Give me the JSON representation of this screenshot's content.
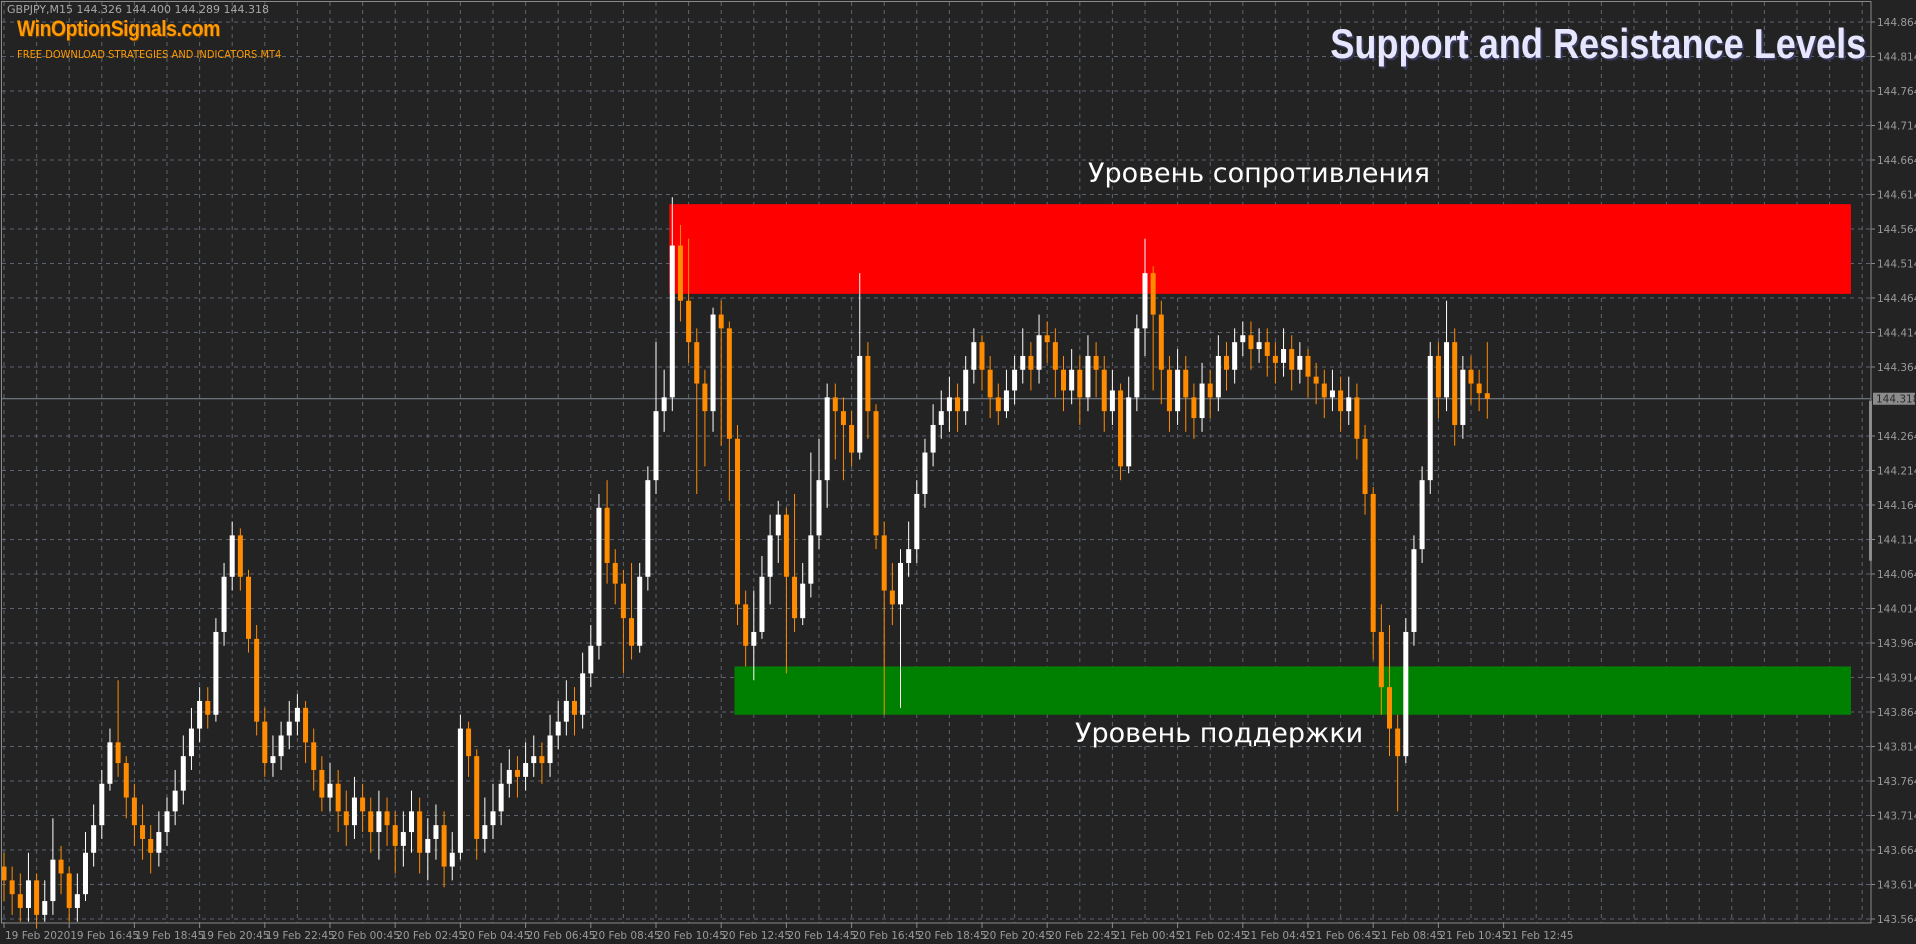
{
  "header": {
    "symbol_line": "GBPJPY,M15  144.326 144.400 144.289 144.318",
    "brand": "WinOptionSignals.com",
    "tagline": "FREE DOWNLOAD STRATEGIES AND INDICATORS MT4",
    "title": "Support and Resistance Levels"
  },
  "colors": {
    "background": "#232323",
    "grid": "#5c6470",
    "bull": "#ffffff",
    "bear": "#ff8c00",
    "resistance": "#ff0000",
    "support": "#008000",
    "axis_text": "#9a9a9a",
    "brand": "#ff9a00"
  },
  "chart_data": {
    "type": "candlestick",
    "symbol": "GBPJPY",
    "timeframe": "M15",
    "grid": true,
    "ylim": [
      143.564,
      144.864
    ],
    "y_ticks": [
      "144.864",
      "144.814",
      "144.764",
      "144.714",
      "144.664",
      "144.614",
      "144.564",
      "144.514",
      "144.464",
      "144.414",
      "144.364",
      "144.318",
      "144.264",
      "144.214",
      "144.164",
      "144.114",
      "144.064",
      "144.014",
      "143.964",
      "143.914",
      "143.864",
      "143.814",
      "143.764",
      "143.714",
      "143.664",
      "143.614",
      "143.564"
    ],
    "current_price": 144.318,
    "current_price_label": "144.318",
    "x_ticks": [
      "19 Feb 2020",
      "19 Feb 16:45",
      "19 Feb 18:45",
      "19 Feb 20:45",
      "19 Feb 22:45",
      "20 Feb 00:45",
      "20 Feb 02:45",
      "20 Feb 04:45",
      "20 Feb 06:45",
      "20 Feb 08:45",
      "20 Feb 10:45",
      "20 Feb 12:45",
      "20 Feb 14:45",
      "20 Feb 16:45",
      "20 Feb 18:45",
      "20 Feb 20:45",
      "20 Feb 22:45",
      "21 Feb 00:45",
      "21 Feb 02:45",
      "21 Feb 04:45",
      "21 Feb 06:45",
      "21 Feb 08:45",
      "21 Feb 10:45",
      "21 Feb 12:45"
    ],
    "bars_per_x_tick": 8,
    "zones": [
      {
        "name": "resistance",
        "label": "Уровень сопротивления",
        "low": 144.47,
        "high": 144.6,
        "start_bar": 82,
        "color": "#ff0000"
      },
      {
        "name": "support",
        "label": "Уровень поддержки",
        "low": 143.86,
        "high": 143.93,
        "start_bar": 90,
        "color": "#008000"
      }
    ],
    "ohlc": [
      [
        143.64,
        143.66,
        143.59,
        143.62
      ],
      [
        143.62,
        143.64,
        143.57,
        143.6
      ],
      [
        143.6,
        143.63,
        143.56,
        143.58
      ],
      [
        143.58,
        143.66,
        143.56,
        143.62
      ],
      [
        143.62,
        143.63,
        143.55,
        143.57
      ],
      [
        143.57,
        143.62,
        143.56,
        143.59
      ],
      [
        143.59,
        143.71,
        143.57,
        143.65
      ],
      [
        143.65,
        143.67,
        143.6,
        143.63
      ],
      [
        143.63,
        143.64,
        143.56,
        143.58
      ],
      [
        143.58,
        143.63,
        143.56,
        143.6
      ],
      [
        143.6,
        143.69,
        143.59,
        143.66
      ],
      [
        143.66,
        143.73,
        143.64,
        143.7
      ],
      [
        143.7,
        143.78,
        143.68,
        143.76
      ],
      [
        143.76,
        143.84,
        143.75,
        143.82
      ],
      [
        143.82,
        143.91,
        143.77,
        143.79
      ],
      [
        143.79,
        143.8,
        143.71,
        143.74
      ],
      [
        143.74,
        143.76,
        143.67,
        143.7
      ],
      [
        143.7,
        143.73,
        143.65,
        143.68
      ],
      [
        143.68,
        143.7,
        143.63,
        143.66
      ],
      [
        143.66,
        143.72,
        143.64,
        143.69
      ],
      [
        143.69,
        143.74,
        143.67,
        143.72
      ],
      [
        143.72,
        143.78,
        143.7,
        143.75
      ],
      [
        143.75,
        143.83,
        143.73,
        143.8
      ],
      [
        143.8,
        143.87,
        143.78,
        143.84
      ],
      [
        143.84,
        143.9,
        143.82,
        143.88
      ],
      [
        143.88,
        143.9,
        143.84,
        143.86
      ],
      [
        143.86,
        144.0,
        143.85,
        143.98
      ],
      [
        143.98,
        144.08,
        143.96,
        144.06
      ],
      [
        144.06,
        144.14,
        144.04,
        144.12
      ],
      [
        144.12,
        144.13,
        144.04,
        144.06
      ],
      [
        144.06,
        144.07,
        143.95,
        143.97
      ],
      [
        143.97,
        143.99,
        143.83,
        143.85
      ],
      [
        143.85,
        143.87,
        143.77,
        143.79
      ],
      [
        143.79,
        143.83,
        143.77,
        143.8
      ],
      [
        143.8,
        143.85,
        143.78,
        143.83
      ],
      [
        143.83,
        143.88,
        143.81,
        143.85
      ],
      [
        143.85,
        143.89,
        143.83,
        143.87
      ],
      [
        143.87,
        143.88,
        143.79,
        143.82
      ],
      [
        143.82,
        143.84,
        143.75,
        143.78
      ],
      [
        143.78,
        143.8,
        143.72,
        143.74
      ],
      [
        143.74,
        143.79,
        143.72,
        143.76
      ],
      [
        143.76,
        143.78,
        143.69,
        143.72
      ],
      [
        143.72,
        143.75,
        143.67,
        143.7
      ],
      [
        143.7,
        143.77,
        143.68,
        143.74
      ],
      [
        143.74,
        143.76,
        143.69,
        143.72
      ],
      [
        143.72,
        143.74,
        143.66,
        143.69
      ],
      [
        143.69,
        143.75,
        143.65,
        143.72
      ],
      [
        143.72,
        143.74,
        143.67,
        143.7
      ],
      [
        143.7,
        143.72,
        143.63,
        143.67
      ],
      [
        143.67,
        143.72,
        143.64,
        143.69
      ],
      [
        143.69,
        143.75,
        143.66,
        143.72
      ],
      [
        143.72,
        143.74,
        143.63,
        143.66
      ],
      [
        143.66,
        143.71,
        143.62,
        143.68
      ],
      [
        143.68,
        143.73,
        143.65,
        143.7
      ],
      [
        143.7,
        143.72,
        143.61,
        143.64
      ],
      [
        143.64,
        143.69,
        143.62,
        143.66
      ],
      [
        143.66,
        143.86,
        143.65,
        143.84
      ],
      [
        143.84,
        143.85,
        143.77,
        143.8
      ],
      [
        143.8,
        143.81,
        143.65,
        143.68
      ],
      [
        143.68,
        143.74,
        143.66,
        143.7
      ],
      [
        143.7,
        143.76,
        143.68,
        143.72
      ],
      [
        143.72,
        143.79,
        143.7,
        143.76
      ],
      [
        143.76,
        143.81,
        143.74,
        143.78
      ],
      [
        143.78,
        143.8,
        143.74,
        143.77
      ],
      [
        143.77,
        143.82,
        143.75,
        143.79
      ],
      [
        143.79,
        143.83,
        143.77,
        143.8
      ],
      [
        143.8,
        143.82,
        143.76,
        143.79
      ],
      [
        143.79,
        143.86,
        143.77,
        143.83
      ],
      [
        143.83,
        143.88,
        143.81,
        143.85
      ],
      [
        143.85,
        143.91,
        143.83,
        143.88
      ],
      [
        143.88,
        143.9,
        143.83,
        143.86
      ],
      [
        143.86,
        143.95,
        143.84,
        143.92
      ],
      [
        143.92,
        143.99,
        143.9,
        143.96
      ],
      [
        143.96,
        144.18,
        143.94,
        144.16
      ],
      [
        144.16,
        144.2,
        144.05,
        144.08
      ],
      [
        144.08,
        144.1,
        144.02,
        144.05
      ],
      [
        144.05,
        144.07,
        143.92,
        144.0
      ],
      [
        144.0,
        144.08,
        143.94,
        143.96
      ],
      [
        143.96,
        144.08,
        143.95,
        144.06
      ],
      [
        144.06,
        144.22,
        144.04,
        144.2
      ],
      [
        144.2,
        144.4,
        144.18,
        144.3
      ],
      [
        144.3,
        144.36,
        144.27,
        144.32
      ],
      [
        144.32,
        144.61,
        144.3,
        144.54
      ],
      [
        144.54,
        144.57,
        144.43,
        144.46
      ],
      [
        144.46,
        144.55,
        144.37,
        144.4
      ],
      [
        144.4,
        144.42,
        144.18,
        144.34
      ],
      [
        144.34,
        144.36,
        144.22,
        144.3
      ],
      [
        144.3,
        144.45,
        144.27,
        144.44
      ],
      [
        144.44,
        144.46,
        144.25,
        144.42
      ],
      [
        144.42,
        144.43,
        144.17,
        144.26
      ],
      [
        144.26,
        144.28,
        143.99,
        144.02
      ],
      [
        144.02,
        144.04,
        143.93,
        143.96
      ],
      [
        143.96,
        144.04,
        143.91,
        143.98
      ],
      [
        143.98,
        144.09,
        143.97,
        144.06
      ],
      [
        144.06,
        144.15,
        144.02,
        144.12
      ],
      [
        144.12,
        144.17,
        144.08,
        144.15
      ],
      [
        144.15,
        144.16,
        143.92,
        144.06
      ],
      [
        144.06,
        144.18,
        143.98,
        144.0
      ],
      [
        144.0,
        144.08,
        143.99,
        144.05
      ],
      [
        144.05,
        144.24,
        144.03,
        144.12
      ],
      [
        144.12,
        144.26,
        144.1,
        144.2
      ],
      [
        144.2,
        144.34,
        144.16,
        144.32
      ],
      [
        144.32,
        144.34,
        144.23,
        144.3
      ],
      [
        144.3,
        144.32,
        144.2,
        144.28
      ],
      [
        144.28,
        144.3,
        144.22,
        144.24
      ],
      [
        144.24,
        144.5,
        144.23,
        144.38
      ],
      [
        144.38,
        144.4,
        144.26,
        144.3
      ],
      [
        144.3,
        144.31,
        144.1,
        144.12
      ],
      [
        144.12,
        144.14,
        143.86,
        144.04
      ],
      [
        144.04,
        144.08,
        143.99,
        144.02
      ],
      [
        144.02,
        144.1,
        143.87,
        144.08
      ],
      [
        144.08,
        144.14,
        144.06,
        144.1
      ],
      [
        144.1,
        144.2,
        144.08,
        144.18
      ],
      [
        144.18,
        144.26,
        144.16,
        144.24
      ],
      [
        144.24,
        144.31,
        144.22,
        144.28
      ],
      [
        144.28,
        144.33,
        144.26,
        144.3
      ],
      [
        144.3,
        144.35,
        144.27,
        144.32
      ],
      [
        144.32,
        144.34,
        144.27,
        144.3
      ],
      [
        144.3,
        144.38,
        144.28,
        144.36
      ],
      [
        144.36,
        144.42,
        144.34,
        144.4
      ],
      [
        144.4,
        144.41,
        144.33,
        144.36
      ],
      [
        144.36,
        144.38,
        144.29,
        144.32
      ],
      [
        144.32,
        144.34,
        144.28,
        144.3
      ],
      [
        144.3,
        144.36,
        144.29,
        144.33
      ],
      [
        144.33,
        144.38,
        144.31,
        144.36
      ],
      [
        144.36,
        144.42,
        144.34,
        144.38
      ],
      [
        144.38,
        144.4,
        144.33,
        144.36
      ],
      [
        144.36,
        144.44,
        144.34,
        144.41
      ],
      [
        144.41,
        144.43,
        144.37,
        144.4
      ],
      [
        144.4,
        144.42,
        144.32,
        144.36
      ],
      [
        144.36,
        144.38,
        144.3,
        144.33
      ],
      [
        144.33,
        144.39,
        144.31,
        144.36
      ],
      [
        144.36,
        144.38,
        144.28,
        144.32
      ],
      [
        144.32,
        144.41,
        144.3,
        144.38
      ],
      [
        144.38,
        144.4,
        144.32,
        144.36
      ],
      [
        144.36,
        144.38,
        144.27,
        144.3
      ],
      [
        144.3,
        144.36,
        144.28,
        144.33
      ],
      [
        144.33,
        144.34,
        144.2,
        144.22
      ],
      [
        144.22,
        144.35,
        144.21,
        144.32
      ],
      [
        144.32,
        144.44,
        144.3,
        144.42
      ],
      [
        144.42,
        144.55,
        144.38,
        144.5
      ],
      [
        144.5,
        144.51,
        144.33,
        144.44
      ],
      [
        144.44,
        144.46,
        144.31,
        144.36
      ],
      [
        144.36,
        144.38,
        144.27,
        144.3
      ],
      [
        144.3,
        144.39,
        144.28,
        144.36
      ],
      [
        144.36,
        144.38,
        144.27,
        144.32
      ],
      [
        144.32,
        144.34,
        144.26,
        144.29
      ],
      [
        144.29,
        144.37,
        144.27,
        144.34
      ],
      [
        144.34,
        144.36,
        144.29,
        144.32
      ],
      [
        144.32,
        144.41,
        144.3,
        144.38
      ],
      [
        144.38,
        144.4,
        144.33,
        144.36
      ],
      [
        144.36,
        144.42,
        144.34,
        144.4
      ],
      [
        144.4,
        144.43,
        144.38,
        144.41
      ],
      [
        144.41,
        144.43,
        144.36,
        144.39
      ],
      [
        144.39,
        144.42,
        144.37,
        144.4
      ],
      [
        144.4,
        144.42,
        144.35,
        144.38
      ],
      [
        144.38,
        144.4,
        144.34,
        144.37
      ],
      [
        144.37,
        144.42,
        144.35,
        144.39
      ],
      [
        144.39,
        144.41,
        144.33,
        144.36
      ],
      [
        144.36,
        144.4,
        144.34,
        144.38
      ],
      [
        144.38,
        144.39,
        144.32,
        144.35
      ],
      [
        144.35,
        144.37,
        144.31,
        144.34
      ],
      [
        144.34,
        144.36,
        144.29,
        144.32
      ],
      [
        144.32,
        144.36,
        144.3,
        144.33
      ],
      [
        144.33,
        144.35,
        144.27,
        144.3
      ],
      [
        144.3,
        144.35,
        144.28,
        144.32
      ],
      [
        144.32,
        144.34,
        144.23,
        144.26
      ],
      [
        144.26,
        144.28,
        144.15,
        144.18
      ],
      [
        144.18,
        144.19,
        143.94,
        143.98
      ],
      [
        143.98,
        144.02,
        143.86,
        143.9
      ],
      [
        143.9,
        143.99,
        143.8,
        143.84
      ],
      [
        143.84,
        143.86,
        143.72,
        143.8
      ],
      [
        143.8,
        144.0,
        143.79,
        143.98
      ],
      [
        143.98,
        144.12,
        143.96,
        144.1
      ],
      [
        144.1,
        144.22,
        144.08,
        144.2
      ],
      [
        144.2,
        144.4,
        144.18,
        144.38
      ],
      [
        144.38,
        144.4,
        144.29,
        144.32
      ],
      [
        144.32,
        144.46,
        144.3,
        144.4
      ],
      [
        144.4,
        144.42,
        144.25,
        144.28
      ],
      [
        144.28,
        144.38,
        144.26,
        144.36
      ],
      [
        144.36,
        144.38,
        144.31,
        144.34
      ],
      [
        144.34,
        144.36,
        144.3,
        144.326
      ],
      [
        144.326,
        144.4,
        144.289,
        144.318
      ]
    ]
  }
}
